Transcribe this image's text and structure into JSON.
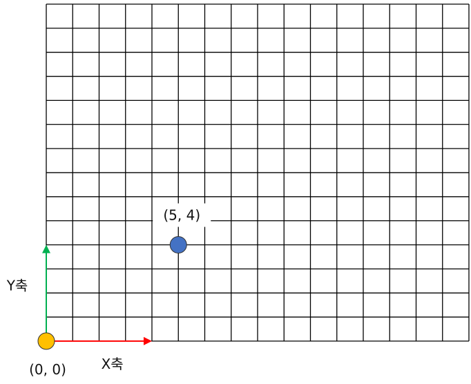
{
  "grid": {
    "columns": 16,
    "rows": 14,
    "line_color": "#000000"
  },
  "origin": {
    "x": 0,
    "y": 0,
    "label": "(0, 0)",
    "color": "#FFC000"
  },
  "point": {
    "x": 5,
    "y": 4,
    "label": "(5, 4)",
    "color": "#4472C4"
  },
  "axes": {
    "x_label": "X축",
    "y_label": "Y축",
    "x_arrow_length": 4,
    "y_arrow_length": 4,
    "x_color": "#FF0000",
    "y_color": "#00B050"
  }
}
